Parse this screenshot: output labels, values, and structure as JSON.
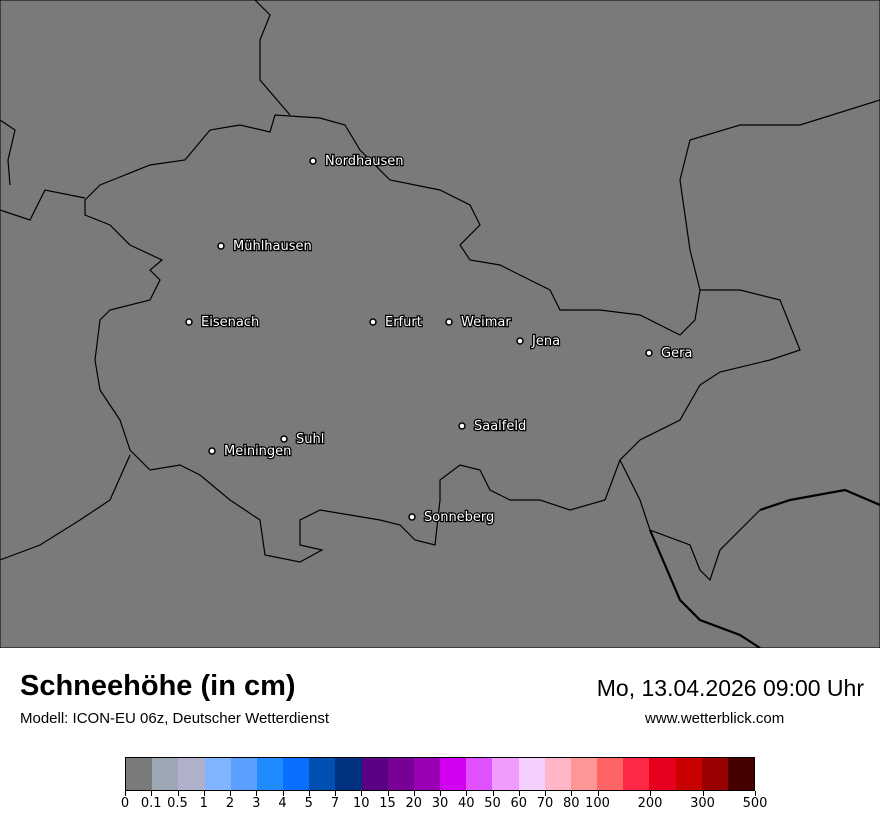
{
  "header": {
    "title": "Schneehöhe (in cm)",
    "subtitle": "Modell: ICON-EU 06z, Deutscher Wetterdienst",
    "datetime": "Mo, 13.04.2026 09:00 Uhr",
    "website": "www.wetterblick.com"
  },
  "map": {
    "background": "#7a7a7a",
    "cities": [
      {
        "name": "Nordhausen"
      },
      {
        "name": "Mühlhausen"
      },
      {
        "name": "Eisenach"
      },
      {
        "name": "Erfurt"
      },
      {
        "name": "Weimar"
      },
      {
        "name": "Jena"
      },
      {
        "name": "Gera"
      },
      {
        "name": "Saalfeld"
      },
      {
        "name": "Suhl"
      },
      {
        "name": "Meiningen"
      },
      {
        "name": "Sonneberg"
      }
    ]
  },
  "legend": {
    "bounds": [
      "0",
      "0.1",
      "0.5",
      "1",
      "2",
      "3",
      "4",
      "5",
      "7",
      "10",
      "15",
      "20",
      "30",
      "40",
      "50",
      "60",
      "70",
      "80",
      "100",
      "150",
      "200",
      "250",
      "300",
      "350",
      "500"
    ],
    "labeled": [
      "0",
      "0.1",
      "0.5",
      "1",
      "2",
      "3",
      "4",
      "5",
      "7",
      "10",
      "15",
      "20",
      "30",
      "40",
      "50",
      "60",
      "70",
      "80",
      "100",
      "200",
      "300",
      "500"
    ],
    "colors": [
      "#7a7a7a",
      "#9ba7b3",
      "#b0b0cc",
      "#80b4ff",
      "#5ca0ff",
      "#1e8cff",
      "#0a6eff",
      "#0050b4",
      "#003280",
      "#5a0082",
      "#780096",
      "#9a00b4",
      "#d200f0",
      "#e050ff",
      "#f09cff",
      "#f5d0ff",
      "#ffb6c8",
      "#ff9696",
      "#ff6464",
      "#ff2846",
      "#e6001e",
      "#c80000",
      "#9b0000",
      "#460000"
    ]
  }
}
